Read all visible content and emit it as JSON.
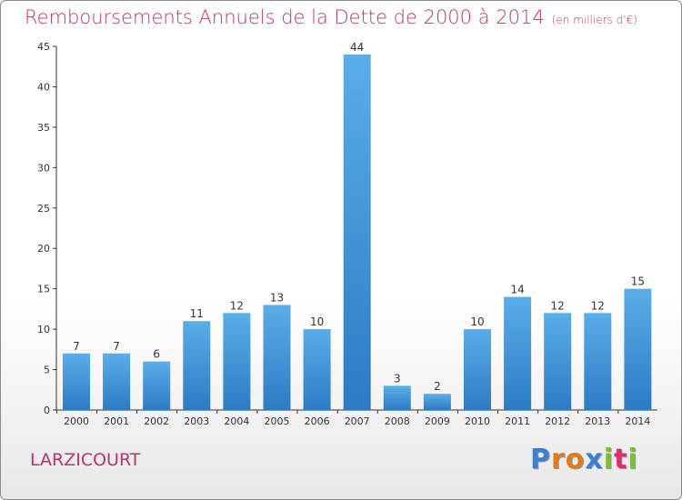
{
  "chart_data": {
    "type": "bar",
    "title": "Remboursements Annuels de la Dette de 2000 à 2014",
    "subtitle": "(en milliers d'€)",
    "categories": [
      "2000",
      "2001",
      "2002",
      "2003",
      "2004",
      "2005",
      "2006",
      "2007",
      "2008",
      "2009",
      "2010",
      "2011",
      "2012",
      "2013",
      "2014"
    ],
    "values": [
      7,
      7,
      6,
      11,
      12,
      13,
      10,
      44,
      3,
      2,
      10,
      14,
      12,
      12,
      15
    ],
    "ylim": [
      0,
      45
    ],
    "yticks": [
      0,
      5,
      10,
      15,
      20,
      25,
      30,
      35,
      40,
      45
    ],
    "grid": false,
    "bar_color": "#3a8fd8"
  },
  "footer": {
    "commune": "LARZICOURT",
    "logo": {
      "letters": [
        "P",
        "r",
        "o",
        "x",
        "i",
        "t",
        "i"
      ],
      "colors": [
        "#3b7fd4",
        "#e07a1f",
        "#e07a1f",
        "#3b7fd4",
        "#7bbf2a",
        "#e02b6f",
        "#7bbf2a"
      ]
    }
  }
}
